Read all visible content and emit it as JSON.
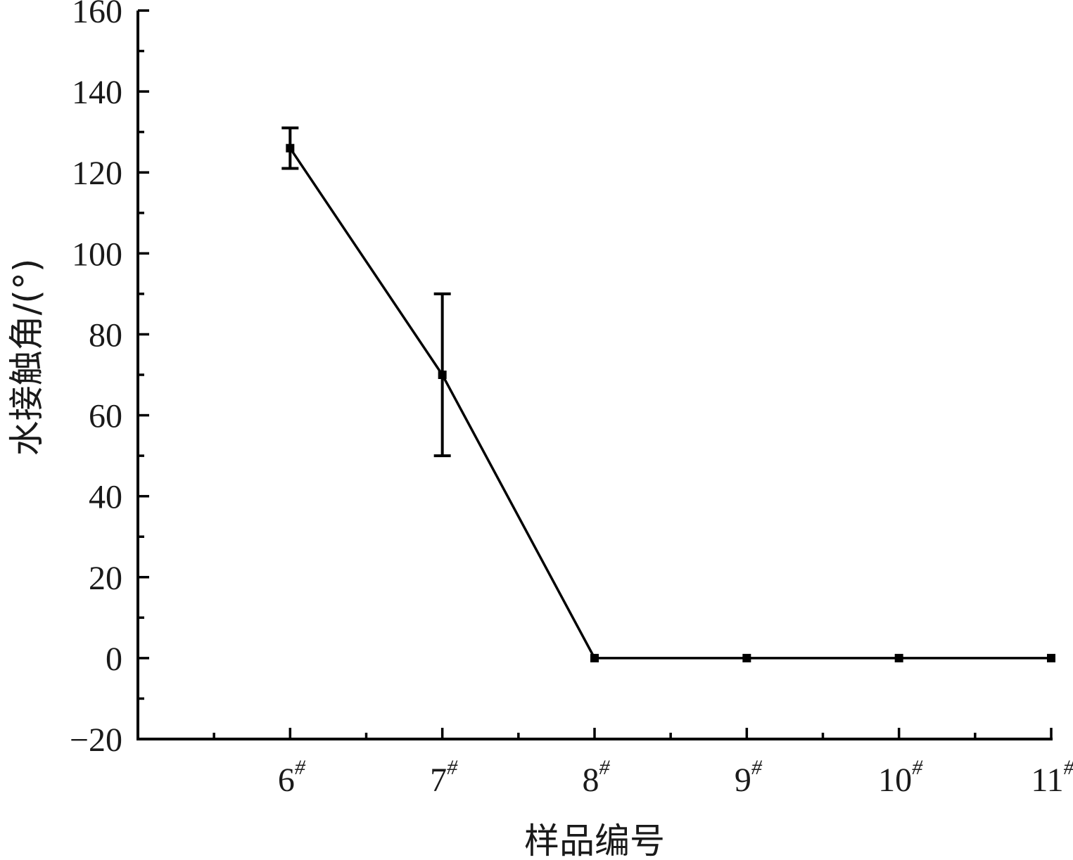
{
  "chart_data": {
    "type": "line",
    "xlabel": "样品编号",
    "ylabel": "水接触角/(°)",
    "categories": [
      "6#",
      "7#",
      "8#",
      "9#",
      "10#",
      "11#"
    ],
    "category_labels": [
      {
        "main": "6",
        "sup": "#"
      },
      {
        "main": "7",
        "sup": "#"
      },
      {
        "main": "8",
        "sup": "#"
      },
      {
        "main": "9",
        "sup": "#"
      },
      {
        "main": "10",
        "sup": "#"
      },
      {
        "main": "11",
        "sup": "#"
      }
    ],
    "series": [
      {
        "values": [
          126,
          70,
          0,
          0,
          0,
          0
        ],
        "errors": [
          5,
          20,
          0,
          0,
          0,
          0
        ],
        "color": "#000000",
        "marker": "square"
      }
    ],
    "ylim": [
      -20,
      160
    ],
    "yticks": [
      -20,
      0,
      20,
      40,
      60,
      80,
      100,
      120,
      140,
      160
    ],
    "ytick_labels": [
      "−20",
      "0",
      "20",
      "40",
      "60",
      "80",
      "100",
      "120",
      "140",
      "160"
    ],
    "xlim": [
      5,
      11
    ],
    "grid": false,
    "legend": "none"
  }
}
